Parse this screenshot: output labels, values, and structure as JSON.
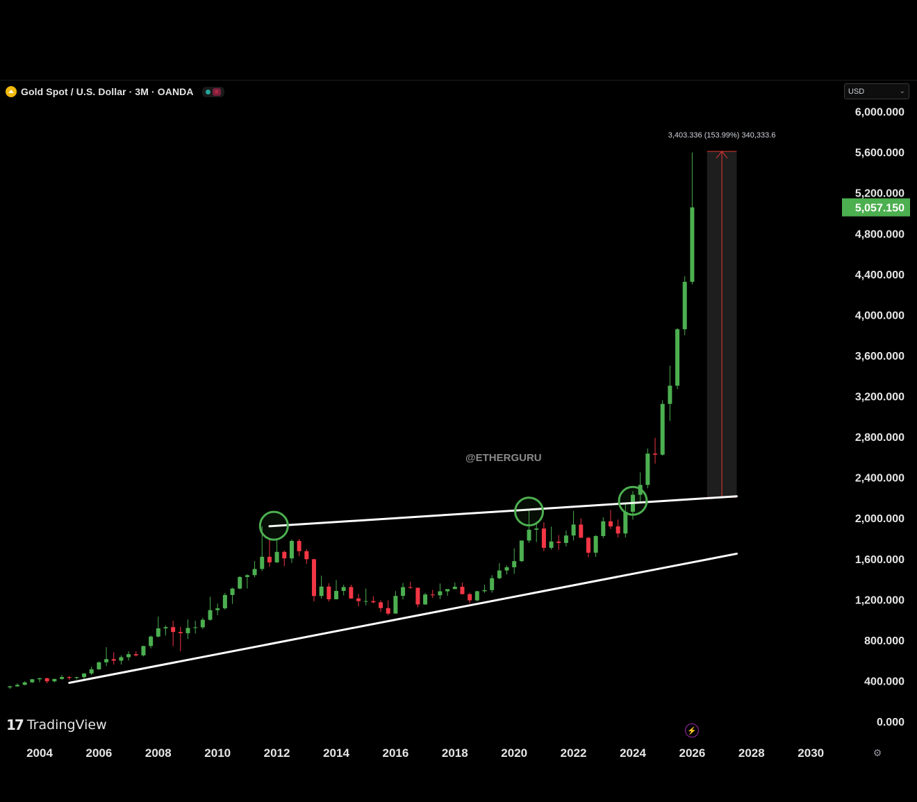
{
  "symbol": {
    "title": "Gold Spot / U.S. Dollar · 3M · OANDA",
    "icon": "gold-coin-icon"
  },
  "currency_select": {
    "value": "USD"
  },
  "watermark": "@ETHERGURU",
  "brand": {
    "name": "TradingView",
    "mark": "17"
  },
  "measure_label": "3,403.336 (153.99%) 340,333.6",
  "last_price": {
    "label": "5,057.150",
    "value": 5057.15,
    "color": "#4caf50"
  },
  "colors": {
    "up": "#4caf50",
    "down": "#f23645",
    "trendline": "#ffffff",
    "circle": "#4caf50",
    "measure": "#e53935"
  },
  "chart_data": {
    "type": "candlestick",
    "title": "Gold Spot / U.S. Dollar · 3M · OANDA",
    "y_axis": {
      "ticks": [
        0,
        400,
        800,
        1200,
        1600,
        2000,
        2400,
        2800,
        3200,
        3600,
        4000,
        4400,
        4800,
        5200,
        5600,
        6000
      ],
      "tick_labels": [
        "0.000",
        "400.000",
        "800.000",
        "1,200.000",
        "1,600.000",
        "2,000.000",
        "2,400.000",
        "2,800.000",
        "3,200.000",
        "3,600.000",
        "4,000.000",
        "4,400.000",
        "4,800.000",
        "5,200.000",
        "5,600.000",
        "6,000.000"
      ],
      "ylim": [
        0,
        6000
      ]
    },
    "x_axis": {
      "ticks": [
        2004,
        2006,
        2008,
        2010,
        2012,
        2014,
        2016,
        2018,
        2020,
        2022,
        2024,
        2026,
        2028,
        2030
      ],
      "tick_labels": [
        "2004",
        "2006",
        "2008",
        "2010",
        "2012",
        "2014",
        "2016",
        "2018",
        "2020",
        "2022",
        "2024",
        "2026",
        "2028",
        "2030"
      ],
      "xlim": [
        2003.0,
        2030.5
      ]
    },
    "candles": [
      {
        "t": 2003.0,
        "o": 335,
        "h": 352,
        "l": 320,
        "c": 345
      },
      {
        "t": 2003.25,
        "o": 345,
        "h": 375,
        "l": 340,
        "c": 360
      },
      {
        "t": 2003.5,
        "o": 360,
        "h": 395,
        "l": 355,
        "c": 385
      },
      {
        "t": 2003.75,
        "o": 385,
        "h": 418,
        "l": 378,
        "c": 415
      },
      {
        "t": 2004.0,
        "o": 415,
        "h": 430,
        "l": 385,
        "c": 425
      },
      {
        "t": 2004.25,
        "o": 425,
        "h": 430,
        "l": 375,
        "c": 395
      },
      {
        "t": 2004.5,
        "o": 395,
        "h": 420,
        "l": 385,
        "c": 418
      },
      {
        "t": 2004.75,
        "o": 418,
        "h": 457,
        "l": 410,
        "c": 437
      },
      {
        "t": 2005.0,
        "o": 437,
        "h": 447,
        "l": 410,
        "c": 428
      },
      {
        "t": 2005.25,
        "o": 428,
        "h": 440,
        "l": 414,
        "c": 436
      },
      {
        "t": 2005.5,
        "o": 436,
        "h": 476,
        "l": 418,
        "c": 472
      },
      {
        "t": 2005.75,
        "o": 472,
        "h": 540,
        "l": 456,
        "c": 513
      },
      {
        "t": 2006.0,
        "o": 513,
        "h": 590,
        "l": 508,
        "c": 582
      },
      {
        "t": 2006.25,
        "o": 582,
        "h": 730,
        "l": 545,
        "c": 613
      },
      {
        "t": 2006.5,
        "o": 613,
        "h": 680,
        "l": 560,
        "c": 598
      },
      {
        "t": 2006.75,
        "o": 598,
        "h": 650,
        "l": 560,
        "c": 632
      },
      {
        "t": 2007.0,
        "o": 632,
        "h": 690,
        "l": 600,
        "c": 662
      },
      {
        "t": 2007.25,
        "o": 662,
        "h": 690,
        "l": 640,
        "c": 650
      },
      {
        "t": 2007.5,
        "o": 650,
        "h": 745,
        "l": 640,
        "c": 742
      },
      {
        "t": 2007.75,
        "o": 742,
        "h": 845,
        "l": 720,
        "c": 835
      },
      {
        "t": 2008.0,
        "o": 835,
        "h": 1032,
        "l": 825,
        "c": 916
      },
      {
        "t": 2008.25,
        "o": 916,
        "h": 945,
        "l": 845,
        "c": 928
      },
      {
        "t": 2008.5,
        "o": 928,
        "h": 990,
        "l": 740,
        "c": 880
      },
      {
        "t": 2008.75,
        "o": 880,
        "h": 930,
        "l": 690,
        "c": 868
      },
      {
        "t": 2009.0,
        "o": 868,
        "h": 1004,
        "l": 810,
        "c": 920
      },
      {
        "t": 2009.25,
        "o": 920,
        "h": 990,
        "l": 865,
        "c": 926
      },
      {
        "t": 2009.5,
        "o": 926,
        "h": 1020,
        "l": 908,
        "c": 1000
      },
      {
        "t": 2009.75,
        "o": 1000,
        "h": 1226,
        "l": 990,
        "c": 1095
      },
      {
        "t": 2010.0,
        "o": 1095,
        "h": 1160,
        "l": 1045,
        "c": 1113
      },
      {
        "t": 2010.25,
        "o": 1113,
        "h": 1265,
        "l": 1100,
        "c": 1244
      },
      {
        "t": 2010.5,
        "o": 1244,
        "h": 1315,
        "l": 1157,
        "c": 1307
      },
      {
        "t": 2010.75,
        "o": 1307,
        "h": 1431,
        "l": 1300,
        "c": 1421
      },
      {
        "t": 2011.0,
        "o": 1421,
        "h": 1448,
        "l": 1308,
        "c": 1439
      },
      {
        "t": 2011.25,
        "o": 1439,
        "h": 1577,
        "l": 1418,
        "c": 1500
      },
      {
        "t": 2011.5,
        "o": 1500,
        "h": 1920,
        "l": 1480,
        "c": 1620
      },
      {
        "t": 2011.75,
        "o": 1620,
        "h": 1800,
        "l": 1522,
        "c": 1565
      },
      {
        "t": 2012.0,
        "o": 1565,
        "h": 1792,
        "l": 1560,
        "c": 1668
      },
      {
        "t": 2012.25,
        "o": 1668,
        "h": 1680,
        "l": 1527,
        "c": 1604
      },
      {
        "t": 2012.5,
        "o": 1604,
        "h": 1790,
        "l": 1560,
        "c": 1776
      },
      {
        "t": 2012.75,
        "o": 1776,
        "h": 1796,
        "l": 1625,
        "c": 1675
      },
      {
        "t": 2013.0,
        "o": 1675,
        "h": 1695,
        "l": 1550,
        "c": 1596
      },
      {
        "t": 2013.25,
        "o": 1596,
        "h": 1600,
        "l": 1180,
        "c": 1234
      },
      {
        "t": 2013.5,
        "o": 1234,
        "h": 1434,
        "l": 1208,
        "c": 1327
      },
      {
        "t": 2013.75,
        "o": 1327,
        "h": 1360,
        "l": 1180,
        "c": 1202
      },
      {
        "t": 2014.0,
        "o": 1202,
        "h": 1392,
        "l": 1200,
        "c": 1284
      },
      {
        "t": 2014.25,
        "o": 1284,
        "h": 1345,
        "l": 1240,
        "c": 1322
      },
      {
        "t": 2014.5,
        "o": 1322,
        "h": 1345,
        "l": 1206,
        "c": 1210
      },
      {
        "t": 2014.75,
        "o": 1210,
        "h": 1255,
        "l": 1131,
        "c": 1184
      },
      {
        "t": 2015.0,
        "o": 1184,
        "h": 1307,
        "l": 1142,
        "c": 1184
      },
      {
        "t": 2015.25,
        "o": 1184,
        "h": 1232,
        "l": 1162,
        "c": 1172
      },
      {
        "t": 2015.5,
        "o": 1172,
        "h": 1191,
        "l": 1077,
        "c": 1115
      },
      {
        "t": 2015.75,
        "o": 1115,
        "h": 1191,
        "l": 1046,
        "c": 1061
      },
      {
        "t": 2016.0,
        "o": 1061,
        "h": 1282,
        "l": 1061,
        "c": 1235
      },
      {
        "t": 2016.25,
        "o": 1235,
        "h": 1362,
        "l": 1200,
        "c": 1321
      },
      {
        "t": 2016.5,
        "o": 1321,
        "h": 1375,
        "l": 1305,
        "c": 1315
      },
      {
        "t": 2016.75,
        "o": 1315,
        "h": 1318,
        "l": 1122,
        "c": 1151
      },
      {
        "t": 2017.0,
        "o": 1151,
        "h": 1264,
        "l": 1146,
        "c": 1249
      },
      {
        "t": 2017.25,
        "o": 1249,
        "h": 1296,
        "l": 1214,
        "c": 1241
      },
      {
        "t": 2017.5,
        "o": 1241,
        "h": 1357,
        "l": 1204,
        "c": 1280
      },
      {
        "t": 2017.75,
        "o": 1280,
        "h": 1300,
        "l": 1236,
        "c": 1302
      },
      {
        "t": 2018.0,
        "o": 1302,
        "h": 1366,
        "l": 1306,
        "c": 1325
      },
      {
        "t": 2018.25,
        "o": 1325,
        "h": 1365,
        "l": 1250,
        "c": 1252
      },
      {
        "t": 2018.5,
        "o": 1252,
        "h": 1265,
        "l": 1160,
        "c": 1191
      },
      {
        "t": 2018.75,
        "o": 1191,
        "h": 1285,
        "l": 1182,
        "c": 1281
      },
      {
        "t": 2019.0,
        "o": 1281,
        "h": 1346,
        "l": 1266,
        "c": 1292
      },
      {
        "t": 2019.25,
        "o": 1292,
        "h": 1439,
        "l": 1266,
        "c": 1409
      },
      {
        "t": 2019.5,
        "o": 1409,
        "h": 1557,
        "l": 1400,
        "c": 1485
      },
      {
        "t": 2019.75,
        "o": 1485,
        "h": 1535,
        "l": 1446,
        "c": 1517
      },
      {
        "t": 2020.0,
        "o": 1517,
        "h": 1703,
        "l": 1451,
        "c": 1577
      },
      {
        "t": 2020.25,
        "o": 1577,
        "h": 1765,
        "l": 1567,
        "c": 1780
      },
      {
        "t": 2020.5,
        "o": 1780,
        "h": 2075,
        "l": 1757,
        "c": 1886
      },
      {
        "t": 2020.75,
        "o": 1886,
        "h": 1965,
        "l": 1764,
        "c": 1898
      },
      {
        "t": 2021.0,
        "o": 1898,
        "h": 1959,
        "l": 1677,
        "c": 1708
      },
      {
        "t": 2021.25,
        "o": 1708,
        "h": 1916,
        "l": 1690,
        "c": 1770
      },
      {
        "t": 2021.5,
        "o": 1770,
        "h": 1834,
        "l": 1688,
        "c": 1756
      },
      {
        "t": 2021.75,
        "o": 1756,
        "h": 1877,
        "l": 1721,
        "c": 1829
      },
      {
        "t": 2022.0,
        "o": 1829,
        "h": 2070,
        "l": 1780,
        "c": 1937
      },
      {
        "t": 2022.25,
        "o": 1937,
        "h": 1998,
        "l": 1805,
        "c": 1807
      },
      {
        "t": 2022.5,
        "o": 1807,
        "h": 1814,
        "l": 1614,
        "c": 1660
      },
      {
        "t": 2022.75,
        "o": 1660,
        "h": 1833,
        "l": 1618,
        "c": 1824
      },
      {
        "t": 2023.0,
        "o": 1824,
        "h": 2009,
        "l": 1804,
        "c": 1969
      },
      {
        "t": 2023.25,
        "o": 1969,
        "h": 2081,
        "l": 1893,
        "c": 1919
      },
      {
        "t": 2023.5,
        "o": 1919,
        "h": 1987,
        "l": 1810,
        "c": 1849
      },
      {
        "t": 2023.75,
        "o": 1849,
        "h": 2146,
        "l": 1810,
        "c": 2063
      },
      {
        "t": 2024.0,
        "o": 2063,
        "h": 2265,
        "l": 1985,
        "c": 2230
      },
      {
        "t": 2024.25,
        "o": 2230,
        "h": 2450,
        "l": 2146,
        "c": 2327
      },
      {
        "t": 2024.5,
        "o": 2327,
        "h": 2685,
        "l": 2293,
        "c": 2635
      },
      {
        "t": 2024.75,
        "o": 2635,
        "h": 2790,
        "l": 2536,
        "c": 2624
      },
      {
        "t": 2025.0,
        "o": 2624,
        "h": 3160,
        "l": 2614,
        "c": 3124
      },
      {
        "t": 2025.25,
        "o": 3124,
        "h": 3500,
        "l": 2956,
        "c": 3303
      },
      {
        "t": 2025.5,
        "o": 3303,
        "h": 3870,
        "l": 3268,
        "c": 3858
      },
      {
        "t": 2025.75,
        "o": 3858,
        "h": 4380,
        "l": 3800,
        "c": 4325
      },
      {
        "t": 2026.0,
        "o": 4325,
        "h": 5598,
        "l": 4300,
        "c": 5057
      }
    ],
    "trendlines": [
      {
        "name": "resistance",
        "from": {
          "t": 2011.75,
          "v": 1920
        },
        "to": {
          "t": 2027.5,
          "v": 2215
        }
      },
      {
        "name": "support",
        "from": {
          "t": 2005.0,
          "v": 380
        },
        "to": {
          "t": 2027.5,
          "v": 1650
        }
      }
    ],
    "touch_points": [
      {
        "t": 2011.9,
        "v": 1925
      },
      {
        "t": 2020.5,
        "v": 2065
      },
      {
        "t": 2024.0,
        "v": 2170
      }
    ],
    "measure": {
      "t_from": 2026.5,
      "t_to": 2027.5,
      "v_from": 2205,
      "v_to": 5608
    }
  }
}
